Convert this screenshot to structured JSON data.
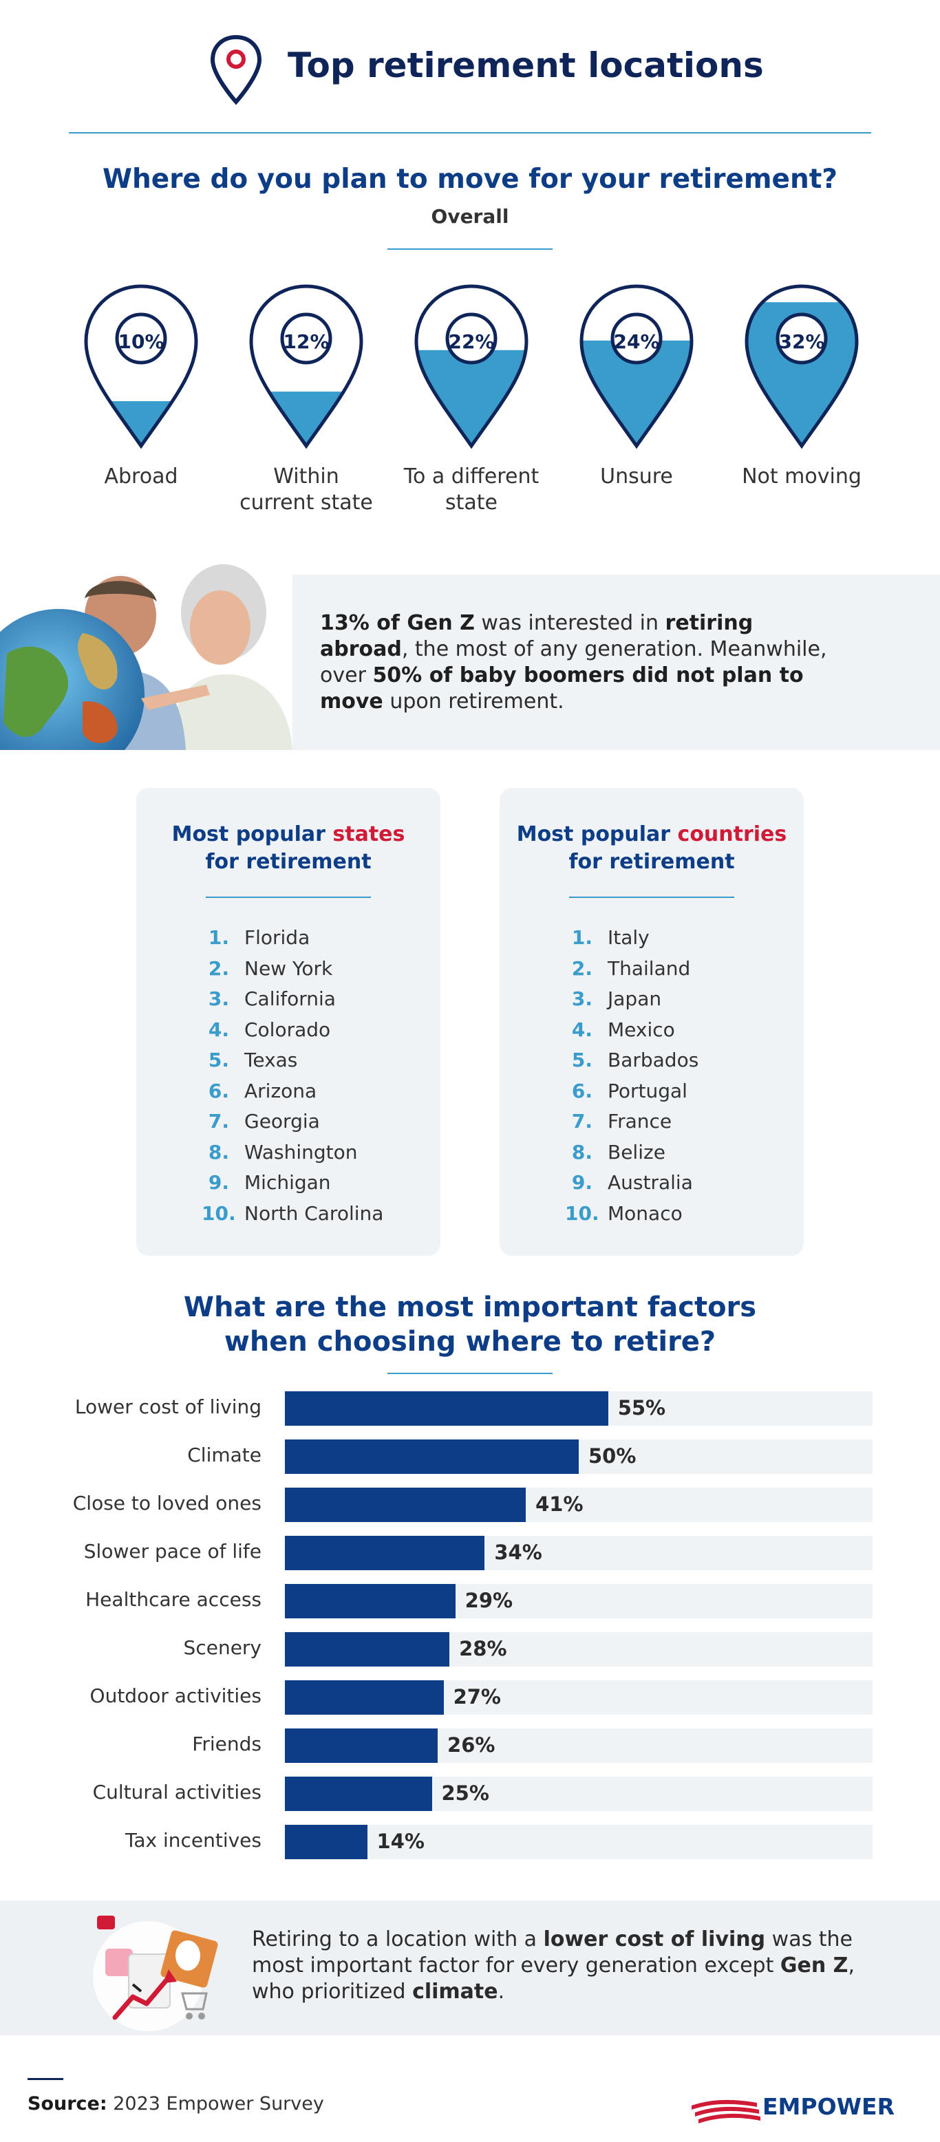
{
  "header": {
    "title": "Top retirement locations",
    "icon": "location-pin-icon"
  },
  "question1": {
    "title": "Where do you plan to move for your retirement?",
    "subtitle": "Overall"
  },
  "chart_data": [
    {
      "type": "pin-fill",
      "title": "Where do you plan to move for your retirement?",
      "subtitle": "Overall",
      "categories": [
        "Abroad",
        "Within current state",
        "To a different state",
        "Unsure",
        "Not moving"
      ],
      "values": [
        10,
        12,
        22,
        24,
        32
      ],
      "labels": [
        "10%",
        "12%",
        "22%",
        "24%",
        "32%"
      ],
      "display_labels": [
        [
          "Abroad"
        ],
        [
          "Within",
          "current state"
        ],
        [
          "To a different",
          "state"
        ],
        [
          "Unsure"
        ],
        [
          "Not moving"
        ]
      ],
      "fill_level": [
        0.28,
        0.34,
        0.6,
        0.66,
        0.9
      ],
      "fill_color": "#3a9ccb",
      "outline_color": "#0f2559"
    },
    {
      "type": "bar",
      "orientation": "horizontal",
      "title": "What are the most important factors when choosing where to retire?",
      "categories": [
        "Lower cost of living",
        "Climate",
        "Close to loved ones",
        "Slower pace of life",
        "Healthcare access",
        "Scenery",
        "Outdoor activities",
        "Friends",
        "Cultural activities",
        "Tax incentives"
      ],
      "values": [
        55,
        50,
        41,
        34,
        29,
        28,
        27,
        26,
        25,
        14
      ],
      "labels": [
        "55%",
        "50%",
        "41%",
        "34%",
        "29%",
        "28%",
        "27%",
        "26%",
        "25%",
        "14%"
      ],
      "xlim": [
        0,
        100
      ],
      "bar_color": "#0c3d86",
      "track_color": "#f0f3f6"
    }
  ],
  "callout1": {
    "parts": [
      {
        "text": "13% of Gen Z",
        "bold": true
      },
      {
        "text": " was interested in ",
        "bold": false
      },
      {
        "text": "retiring abroad",
        "bold": true
      },
      {
        "text": ", the most of any generation. Meanwhile, over ",
        "bold": false
      },
      {
        "text": "50% of baby boomers did not plan to move",
        "bold": true
      },
      {
        "text": " upon retirement.",
        "bold": false
      }
    ],
    "image": "couple-with-globe-photo"
  },
  "states_card": {
    "title_pre": "Most popular ",
    "title_highlight": "states",
    "title_post": "for retirement",
    "items": [
      {
        "num": "1.",
        "name": "Florida"
      },
      {
        "num": "2.",
        "name": "New York"
      },
      {
        "num": "3.",
        "name": "California"
      },
      {
        "num": "4.",
        "name": "Colorado"
      },
      {
        "num": "5.",
        "name": "Texas"
      },
      {
        "num": "6.",
        "name": "Arizona"
      },
      {
        "num": "7.",
        "name": "Georgia"
      },
      {
        "num": "8.",
        "name": "Washington"
      },
      {
        "num": "9.",
        "name": "Michigan"
      },
      {
        "num": "10.",
        "name": "North Carolina"
      }
    ]
  },
  "countries_card": {
    "title_pre": "Most popular ",
    "title_highlight": "countries",
    "title_post": "for retirement",
    "items": [
      {
        "num": "1.",
        "name": "Italy"
      },
      {
        "num": "2.",
        "name": "Thailand"
      },
      {
        "num": "3.",
        "name": "Japan"
      },
      {
        "num": "4.",
        "name": "Mexico"
      },
      {
        "num": "5.",
        "name": "Barbados"
      },
      {
        "num": "6.",
        "name": "Portugal"
      },
      {
        "num": "7.",
        "name": "France"
      },
      {
        "num": "8.",
        "name": "Belize"
      },
      {
        "num": "9.",
        "name": "Australia"
      },
      {
        "num": "10.",
        "name": "Monaco"
      }
    ]
  },
  "question2": {
    "line1": "What are the most important factors",
    "line2": "when choosing where to retire?"
  },
  "callout2": {
    "parts": [
      {
        "text": "Retiring to a location with a ",
        "bold": false
      },
      {
        "text": "lower cost of living",
        "bold": true
      },
      {
        "text": " was the most important factor for every generation except ",
        "bold": false
      },
      {
        "text": "Gen Z",
        "bold": true
      },
      {
        "text": ", who prioritized ",
        "bold": false
      },
      {
        "text": "climate",
        "bold": true
      },
      {
        "text": ".",
        "bold": false
      }
    ],
    "image": "cost-of-living-illustration"
  },
  "footer": {
    "source_label": "Source:",
    "source_text": " 2023 Empower Survey",
    "brand": "EMPOWER",
    "brand_icon": "empower-logo-icon"
  },
  "colors": {
    "navy": "#0f2559",
    "blue": "#0c3d86",
    "teal": "#3a9ccb",
    "red": "#d11a36",
    "panel": "#f0f3f6"
  }
}
